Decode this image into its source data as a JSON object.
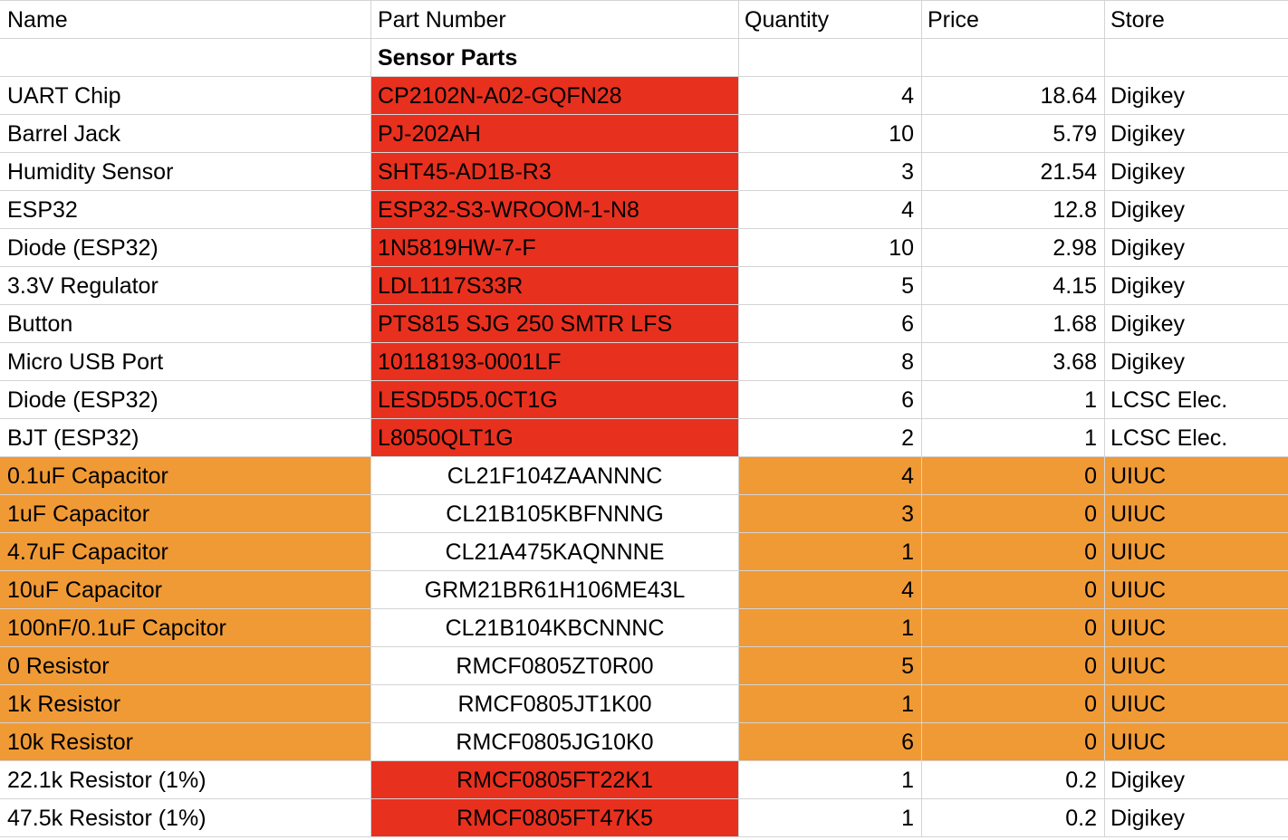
{
  "headers": [
    "Name",
    "Part Number",
    "Quantity",
    "Price",
    "Store"
  ],
  "section_title": "Sensor Parts",
  "colors": {
    "red_fill": "#e8301f",
    "orange_fill": "#f09a36",
    "gridline": "#d4d4d4"
  },
  "rows": [
    {
      "name": "UART Chip",
      "part": "CP2102N-A02-GQFN28",
      "qty": "4",
      "price": "18.64",
      "store": "Digikey",
      "style": "red-part"
    },
    {
      "name": "Barrel Jack",
      "part": "PJ-202AH",
      "qty": "10",
      "price": "5.79",
      "store": "Digikey",
      "style": "red-part"
    },
    {
      "name": "Humidity Sensor",
      "part": "SHT45-AD1B-R3",
      "qty": "3",
      "price": "21.54",
      "store": "Digikey",
      "style": "red-part"
    },
    {
      "name": "ESP32",
      "part": "ESP32-S3-WROOM-1-N8",
      "qty": "4",
      "price": "12.8",
      "store": "Digikey",
      "style": "red-part"
    },
    {
      "name": "Diode (ESP32)",
      "part": "1N5819HW-7-F",
      "qty": "10",
      "price": "2.98",
      "store": "Digikey",
      "style": "red-part"
    },
    {
      "name": "3.3V Regulator",
      "part": "LDL1117S33R",
      "qty": "5",
      "price": "4.15",
      "store": "Digikey",
      "style": "red-part"
    },
    {
      "name": "Button",
      "part": "PTS815 SJG 250 SMTR LFS",
      "qty": "6",
      "price": "1.68",
      "store": "Digikey",
      "style": "red-part"
    },
    {
      "name": "Micro USB Port",
      "part": "10118193-0001LF",
      "qty": "8",
      "price": "3.68",
      "store": "Digikey",
      "style": "red-part"
    },
    {
      "name": "Diode (ESP32)",
      "part": "LESD5D5.0CT1G",
      "qty": "6",
      "price": "1",
      "store": "LCSC Elec.",
      "style": "red-part"
    },
    {
      "name": "BJT (ESP32)",
      "part": "L8050QLT1G",
      "qty": "2",
      "price": "1",
      "store": "LCSC Elec.",
      "style": "red-part"
    },
    {
      "name": "0.1uF Capacitor",
      "part": "CL21F104ZAANNNC",
      "qty": "4",
      "price": "0",
      "store": "UIUC",
      "style": "orange"
    },
    {
      "name": "1uF Capacitor",
      "part": "CL21B105KBFNNNG",
      "qty": "3",
      "price": "0",
      "store": "UIUC",
      "style": "orange"
    },
    {
      "name": "4.7uF Capacitor",
      "part": "CL21A475KAQNNNE",
      "qty": "1",
      "price": "0",
      "store": "UIUC",
      "style": "orange"
    },
    {
      "name": "10uF Capacitor",
      "part": "GRM21BR61H106ME43L",
      "qty": "4",
      "price": "0",
      "store": "UIUC",
      "style": "orange"
    },
    {
      "name": "100nF/0.1uF Capcitor",
      "part": "CL21B104KBCNNNC",
      "qty": "1",
      "price": "0",
      "store": "UIUC",
      "style": "orange"
    },
    {
      "name": "0 Resistor",
      "part": "RMCF0805ZT0R00",
      "qty": "5",
      "price": "0",
      "store": "UIUC",
      "style": "orange"
    },
    {
      "name": "1k Resistor",
      "part": "RMCF0805JT1K00",
      "qty": "1",
      "price": "0",
      "store": "UIUC",
      "style": "orange"
    },
    {
      "name": "10k Resistor",
      "part": "RMCF0805JG10K0",
      "qty": "6",
      "price": "0",
      "store": "UIUC",
      "style": "orange"
    },
    {
      "name": "22.1k Resistor (1%)",
      "part": "RMCF0805FT22K1",
      "qty": "1",
      "price": "0.2",
      "store": "Digikey",
      "style": "red-center"
    },
    {
      "name": "47.5k Resistor (1%)",
      "part": "RMCF0805FT47K5",
      "qty": "1",
      "price": "0.2",
      "store": "Digikey",
      "style": "red-center"
    }
  ]
}
